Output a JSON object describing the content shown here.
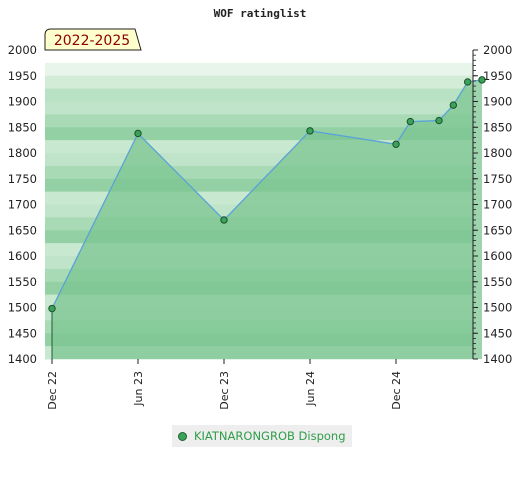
{
  "chart_data": {
    "type": "line",
    "title": "WOF ratinglist",
    "badge": "2022-2025",
    "ylim": [
      1400,
      2000
    ],
    "y_ticks": [
      1400,
      1450,
      1500,
      1550,
      1600,
      1650,
      1700,
      1750,
      1800,
      1850,
      1900,
      1950,
      2000
    ],
    "x_ticks": [
      "Dec 22",
      "Jun 23",
      "Dec 23",
      "Jun 24",
      "Dec 24"
    ],
    "series": [
      {
        "name": "KIATNARONGROB Dispong",
        "x": [
          "Dec 22",
          "Jun 23",
          "Dec 23",
          "Jun 24",
          "Dec 24",
          "Jan 25",
          "Mar 25",
          "Apr 25",
          "May 25",
          "Jun 25"
        ],
        "values": [
          1498,
          1838,
          1670,
          1843,
          1817,
          1861,
          1863,
          1893,
          1938,
          1942
        ]
      }
    ],
    "line_color": "#5aa2d8",
    "area_color": "#7cc592",
    "marker_color": "#3aa35a",
    "grid": true,
    "legend_position": "bottom"
  }
}
